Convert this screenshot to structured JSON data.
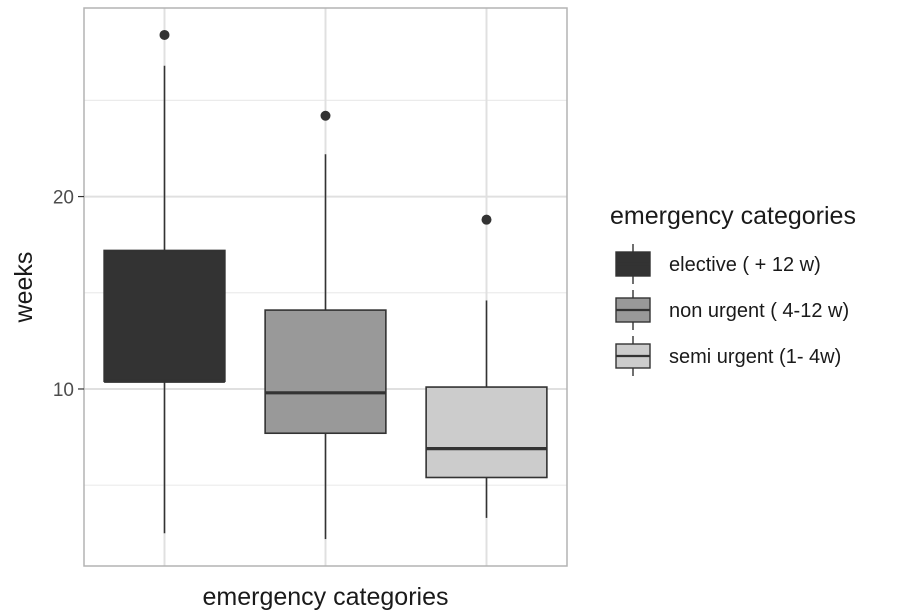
{
  "chart_data": {
    "type": "boxplot",
    "title": "",
    "xlabel": "emergency categories",
    "ylabel": "weeks",
    "ylim": [
      0.8,
      29.8
    ],
    "yticks": [
      10,
      20
    ],
    "grid": true,
    "legend": {
      "title": "emergency categories",
      "position": "right"
    },
    "series": [
      {
        "name": "elective ( + 12 w)",
        "color": "#333333",
        "q1": 10.4,
        "median": 10.4,
        "q3": 17.2,
        "whisker_low": 2.5,
        "whisker_high": 26.8,
        "outliers": [
          28.4
        ]
      },
      {
        "name": "non urgent ( 4-12 w)",
        "color": "#999999",
        "q1": 7.7,
        "median": 9.8,
        "q3": 14.1,
        "whisker_low": 2.2,
        "whisker_high": 22.2,
        "outliers": [
          24.2
        ]
      },
      {
        "name": "semi urgent (1- 4w)",
        "color": "#cccccc",
        "q1": 5.4,
        "median": 6.9,
        "q3": 10.1,
        "whisker_low": 3.3,
        "whisker_high": 14.6,
        "outliers": [
          18.8
        ]
      }
    ]
  }
}
